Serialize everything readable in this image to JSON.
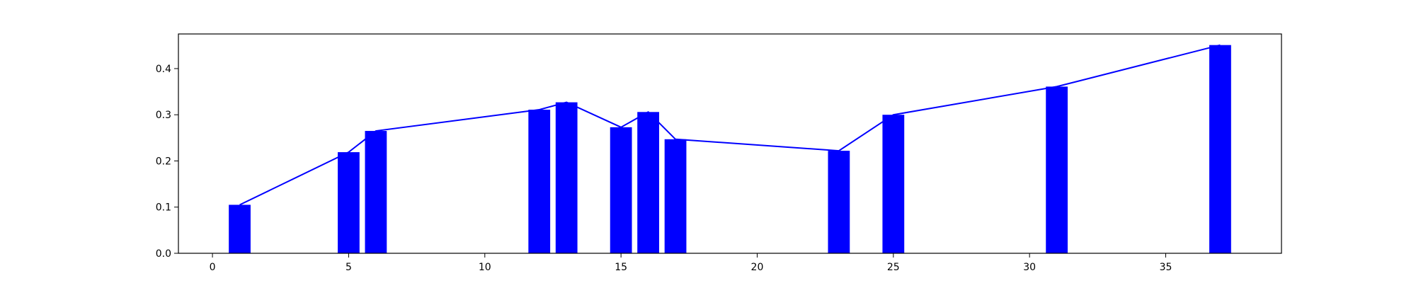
{
  "chart_data": {
    "type": "bar",
    "title": "",
    "xlabel": "",
    "ylabel": "",
    "xlim": [
      -1.25,
      39.25
    ],
    "ylim": [
      0,
      0.475
    ],
    "x_ticks": [
      0,
      5,
      10,
      15,
      20,
      25,
      30,
      35
    ],
    "y_ticks": [
      0.0,
      0.1,
      0.2,
      0.3,
      0.4
    ],
    "x_tick_labels": [
      "0",
      "5",
      "10",
      "15",
      "20",
      "25",
      "30",
      "35"
    ],
    "y_tick_labels": [
      "0.0",
      "0.1",
      "0.2",
      "0.3",
      "0.4"
    ],
    "bar_width": 0.8,
    "grid": false,
    "legend": "none",
    "x": [
      1,
      5,
      6,
      12,
      13,
      15,
      16,
      17,
      23,
      25,
      31,
      37
    ],
    "values": [
      0.105,
      0.219,
      0.265,
      0.311,
      0.327,
      0.273,
      0.306,
      0.247,
      0.222,
      0.3,
      0.361,
      0.451
    ],
    "colors": {
      "bar": "#0000ff",
      "line": "#0000ff",
      "axis": "#000000"
    }
  }
}
